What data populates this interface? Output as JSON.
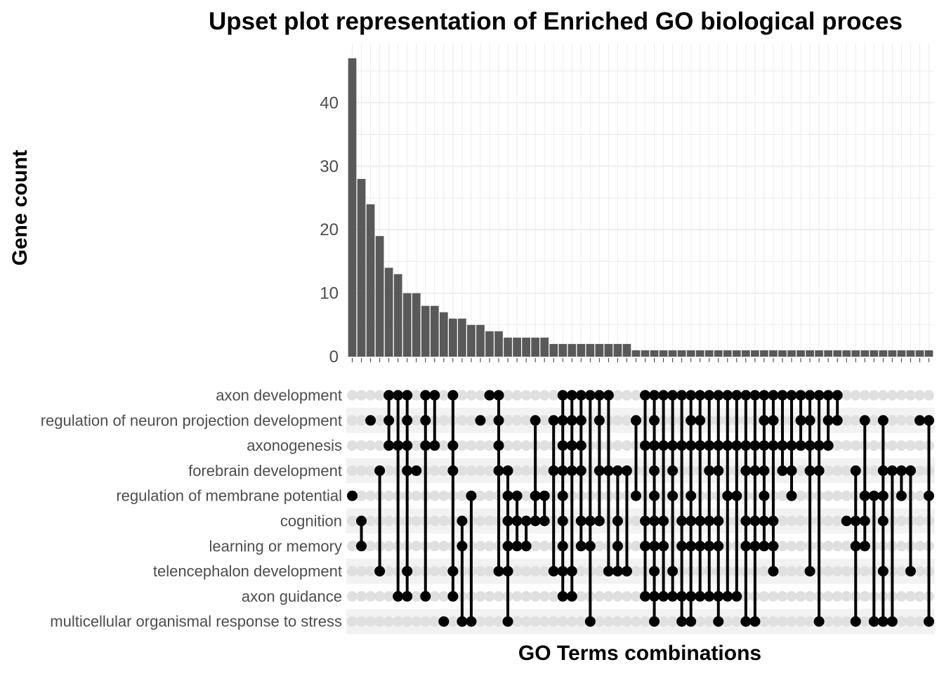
{
  "chart_data": {
    "type": "upset",
    "title": "Upset plot representation of Enriched GO biological proces",
    "xlabel": "GO Terms combinations",
    "ylabel": "Gene count",
    "ylim": [
      0,
      48
    ],
    "y_ticks": [
      0,
      10,
      20,
      30,
      40
    ],
    "grid": true,
    "sets": [
      "axon development",
      "regulation of neuron projection development",
      "axonogenesis",
      "forebrain development",
      "regulation of membrane potential",
      "cognition",
      "learning or memory",
      "telencephalon development",
      "axon guidance",
      "multicellular organismal response to stress"
    ],
    "intersections": [
      {
        "count": 47,
        "sets": [
          4
        ]
      },
      {
        "count": 28,
        "sets": [
          5,
          6
        ]
      },
      {
        "count": 24,
        "sets": [
          1
        ]
      },
      {
        "count": 19,
        "sets": [
          3,
          7
        ]
      },
      {
        "count": 14,
        "sets": [
          0,
          1,
          2
        ]
      },
      {
        "count": 13,
        "sets": [
          0,
          2,
          8
        ]
      },
      {
        "count": 10,
        "sets": [
          0,
          1,
          2,
          3,
          7,
          8
        ]
      },
      {
        "count": 10,
        "sets": [
          3
        ]
      },
      {
        "count": 8,
        "sets": [
          0,
          1,
          2,
          8
        ]
      },
      {
        "count": 8,
        "sets": [
          0,
          2
        ]
      },
      {
        "count": 7,
        "sets": [
          9
        ]
      },
      {
        "count": 6,
        "sets": [
          0,
          2,
          3,
          7,
          8
        ]
      },
      {
        "count": 6,
        "sets": [
          5,
          6,
          9
        ]
      },
      {
        "count": 5,
        "sets": [
          4,
          9
        ]
      },
      {
        "count": 5,
        "sets": [
          1
        ]
      },
      {
        "count": 4,
        "sets": [
          0
        ]
      },
      {
        "count": 4,
        "sets": [
          0,
          1,
          2,
          3,
          7
        ]
      },
      {
        "count": 3,
        "sets": [
          3,
          4,
          5,
          6,
          7,
          9
        ]
      },
      {
        "count": 3,
        "sets": [
          4,
          5,
          6
        ]
      },
      {
        "count": 3,
        "sets": [
          5,
          6
        ]
      },
      {
        "count": 3,
        "sets": [
          1,
          4,
          5
        ]
      },
      {
        "count": 3,
        "sets": [
          4,
          5
        ]
      },
      {
        "count": 2,
        "sets": [
          1,
          3,
          7
        ]
      },
      {
        "count": 2,
        "sets": [
          0,
          1,
          2,
          3,
          4,
          5,
          6,
          7,
          8
        ]
      },
      {
        "count": 2,
        "sets": [
          0,
          1,
          2,
          3,
          7,
          8
        ]
      },
      {
        "count": 2,
        "sets": [
          0,
          1,
          2,
          3,
          5,
          6
        ]
      },
      {
        "count": 2,
        "sets": [
          0,
          5,
          6,
          9
        ]
      },
      {
        "count": 2,
        "sets": [
          0,
          1,
          3,
          5
        ]
      },
      {
        "count": 2,
        "sets": [
          0,
          3,
          7
        ]
      },
      {
        "count": 2,
        "sets": [
          3,
          5,
          6,
          7
        ]
      },
      {
        "count": 2,
        "sets": [
          3,
          7
        ]
      },
      {
        "count": 1,
        "sets": [
          1,
          4
        ]
      },
      {
        "count": 1,
        "sets": [
          0,
          2,
          5,
          6,
          8
        ]
      },
      {
        "count": 1,
        "sets": [
          0,
          1,
          2,
          3,
          4,
          5,
          6,
          7,
          8,
          9
        ]
      },
      {
        "count": 1,
        "sets": [
          0,
          2,
          5,
          6,
          8
        ]
      },
      {
        "count": 1,
        "sets": [
          0,
          2,
          3,
          4,
          7,
          8
        ]
      },
      {
        "count": 1,
        "sets": [
          0,
          2,
          5,
          6,
          8,
          9
        ]
      },
      {
        "count": 1,
        "sets": [
          0,
          1,
          2,
          4,
          5,
          6,
          8,
          9
        ]
      },
      {
        "count": 1,
        "sets": [
          0,
          1,
          2,
          5,
          6,
          8
        ]
      },
      {
        "count": 1,
        "sets": [
          0,
          2,
          3,
          5,
          6,
          8
        ]
      },
      {
        "count": 1,
        "sets": [
          0,
          2,
          3,
          5,
          6,
          8,
          9
        ]
      },
      {
        "count": 1,
        "sets": [
          0,
          2,
          4,
          8
        ]
      },
      {
        "count": 1,
        "sets": [
          0,
          2,
          4,
          8
        ]
      },
      {
        "count": 1,
        "sets": [
          0,
          2,
          3,
          5,
          6,
          9
        ]
      },
      {
        "count": 1,
        "sets": [
          0,
          2,
          3,
          5,
          6,
          9
        ]
      },
      {
        "count": 1,
        "sets": [
          0,
          1,
          2,
          3,
          4,
          5,
          6
        ]
      },
      {
        "count": 1,
        "sets": [
          0,
          1,
          2,
          5,
          6,
          7
        ]
      },
      {
        "count": 1,
        "sets": [
          0,
          2,
          3
        ]
      },
      {
        "count": 1,
        "sets": [
          0,
          2,
          3,
          4
        ]
      },
      {
        "count": 1,
        "sets": [
          0,
          1,
          2
        ]
      },
      {
        "count": 1,
        "sets": [
          0,
          1,
          2,
          3,
          7
        ]
      },
      {
        "count": 1,
        "sets": [
          0,
          2,
          3,
          9
        ]
      },
      {
        "count": 1,
        "sets": [
          0,
          1,
          2
        ]
      },
      {
        "count": 1,
        "sets": [
          0,
          1
        ]
      },
      {
        "count": 1,
        "sets": [
          5
        ]
      },
      {
        "count": 1,
        "sets": [
          3,
          5,
          6,
          9
        ]
      },
      {
        "count": 1,
        "sets": [
          1,
          4,
          5,
          6
        ]
      },
      {
        "count": 1,
        "sets": [
          4,
          9
        ]
      },
      {
        "count": 1,
        "sets": [
          1,
          3,
          4,
          5,
          7,
          9
        ]
      },
      {
        "count": 1,
        "sets": [
          3,
          9
        ]
      },
      {
        "count": 1,
        "sets": [
          3,
          4
        ]
      },
      {
        "count": 1,
        "sets": [
          3,
          7
        ]
      },
      {
        "count": 1,
        "sets": [
          1
        ]
      },
      {
        "count": 1,
        "sets": [
          1,
          4,
          9
        ]
      }
    ],
    "colors": {
      "bar": "#595959",
      "dot_active": "#000000",
      "dot_inactive": "#e0e0e0",
      "grid": "#ebebeb",
      "row_stripe": "#f2f2f2"
    }
  }
}
